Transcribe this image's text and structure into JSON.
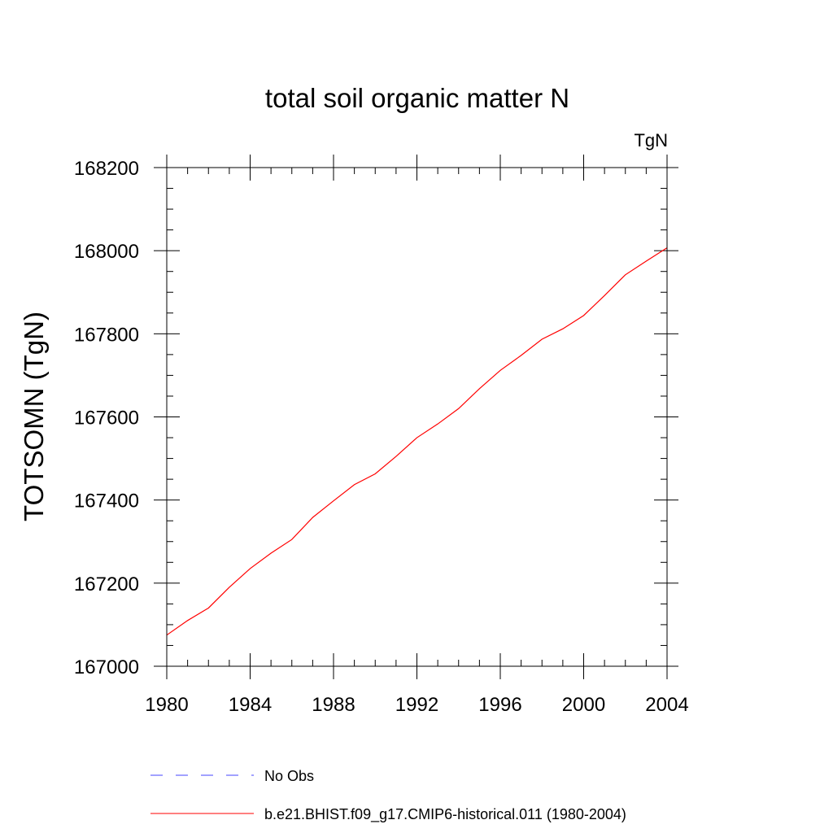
{
  "chart_data": {
    "type": "line",
    "title": "total soil organic matter N",
    "units": "TgN",
    "xlabel": "",
    "ylabel": "TOTSOMN  (TgN)",
    "xlim": [
      1980,
      2004
    ],
    "ylim": [
      167000,
      168200
    ],
    "x_ticks": [
      "1980",
      "1984",
      "1988",
      "1992",
      "1996",
      "2000",
      "2004"
    ],
    "y_ticks": [
      "167000",
      "167200",
      "167400",
      "167600",
      "167800",
      "168000",
      "168200"
    ],
    "x": [
      1980,
      1981,
      1982,
      1983,
      1984,
      1985,
      1986,
      1987,
      1988,
      1989,
      1990,
      1991,
      1992,
      1993,
      1994,
      1995,
      1996,
      1997,
      1998,
      1999,
      2000,
      2001,
      2002,
      2003,
      2004
    ],
    "series": [
      {
        "name": "b.e21.BHIST.f09_g17.CMIP6-historical.011 (1980-2004)",
        "color": "#ff0000",
        "values": [
          167075,
          167110,
          167140,
          167190,
          167235,
          167272,
          167305,
          167358,
          167398,
          167437,
          167463,
          167505,
          167550,
          167583,
          167620,
          167668,
          167712,
          167748,
          167787,
          167812,
          167844,
          167892,
          167942,
          167975,
          168007
        ]
      }
    ],
    "legend": {
      "placement": "bottom",
      "entries": [
        {
          "label": "No Obs",
          "color": "#4444ff",
          "style": "dashed"
        },
        {
          "label": "b.e21.BHIST.f09_g17.CMIP6-historical.011 (1980-2004)",
          "color": "#ff0000",
          "style": "solid"
        }
      ]
    },
    "grid": false
  }
}
